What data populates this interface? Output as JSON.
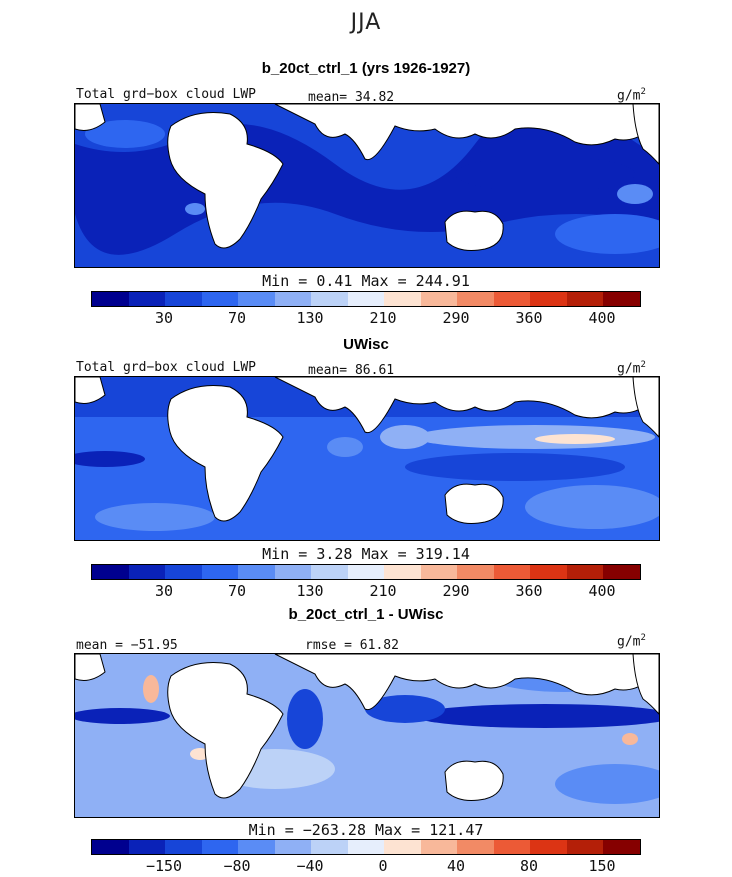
{
  "season": "JJA",
  "colorbar_colors": [
    "#00008f",
    "#0a22b8",
    "#1745d8",
    "#2e66f0",
    "#5a8cf5",
    "#8fb0f5",
    "#bcd2f7",
    "#e6eefc",
    "#fde3d2",
    "#f8b89a",
    "#f28a65",
    "#ec5a36",
    "#dc3414",
    "#b41f08",
    "#860000"
  ],
  "panels": [
    {
      "title": "b_20ct_ctrl_1 (yrs 1926-1927)",
      "field_label": "Total grd−box cloud LWP",
      "stat1": "mean=  34.82",
      "stat2": "",
      "units": "g/m",
      "units_sup": "2",
      "minmax": "Min =    0.41  Max =  244.91",
      "ticks": [
        "30",
        "70",
        "130",
        "210",
        "290",
        "360",
        "400"
      ]
    },
    {
      "title": "UWisc",
      "field_label": "Total grd−box cloud LWP",
      "stat1": "mean=  86.61",
      "stat2": "",
      "units": "g/m",
      "units_sup": "2",
      "minmax": "Min =    3.28  Max =  319.14",
      "ticks": [
        "30",
        "70",
        "130",
        "210",
        "290",
        "360",
        "400"
      ]
    },
    {
      "title": "b_20ct_ctrl_1 - UWisc",
      "field_label": "mean = −51.95",
      "stat1": "rmse =  61.82",
      "stat2": "",
      "units": "g/m",
      "units_sup": "2",
      "minmax": "Min = −263.28  Max =  121.47",
      "ticks": [
        "−150",
        "−80",
        "−40",
        "0",
        "40",
        "80",
        "150"
      ]
    }
  ],
  "map_fill": {
    "panel1": {
      "base": "#1745d8",
      "deep": "#0a22b8",
      "light": "#2e66f0"
    },
    "panel2": {
      "base": "#2e66f0",
      "deep": "#1745d8",
      "light": "#8fb0f5",
      "warm": "#fde3d2"
    },
    "panel3": {
      "base": "#8fb0f5",
      "deep": "#0a22b8",
      "light": "#bcd2f7",
      "warm": "#f8b89a"
    }
  }
}
